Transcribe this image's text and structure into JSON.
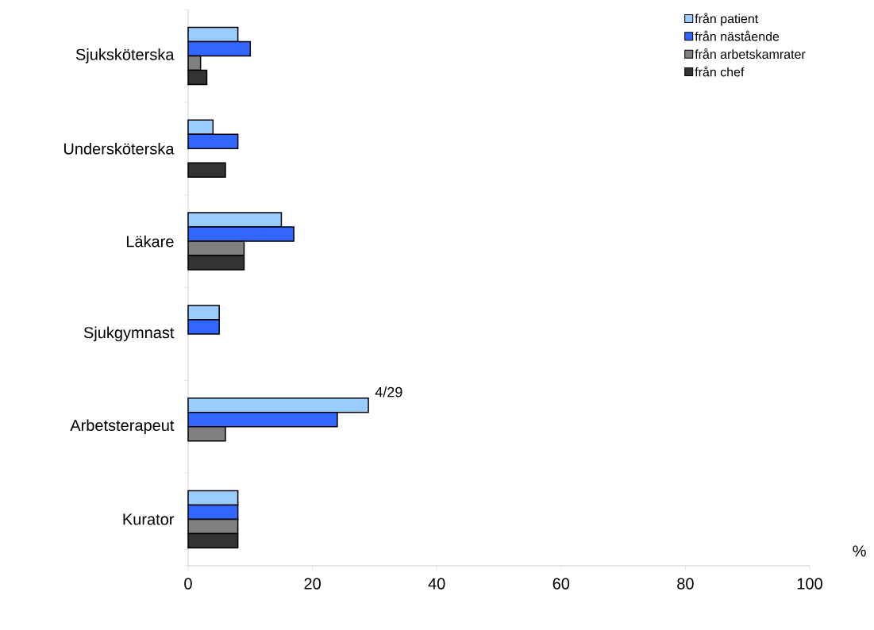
{
  "chart_data": {
    "type": "bar",
    "orientation": "horizontal",
    "categories": [
      "Sjuksköterska",
      "Undersköterska",
      "Läkare",
      "Sjukgymnast",
      "Arbetsterapeut",
      "Kurator"
    ],
    "series": [
      {
        "name": "från patient",
        "color": "#99ccff",
        "values": [
          8,
          4,
          15,
          5,
          29,
          8
        ]
      },
      {
        "name": "från nästående",
        "color": "#3366ff",
        "values": [
          10,
          8,
          17,
          5,
          24,
          8
        ]
      },
      {
        "name": "från arbetskamrater",
        "color": "#808080",
        "values": [
          2,
          null,
          9,
          null,
          6,
          8
        ]
      },
      {
        "name": "från chef",
        "color": "#333333",
        "values": [
          3,
          6,
          9,
          null,
          null,
          8
        ]
      }
    ],
    "xlabel": "%",
    "xlim": [
      0,
      100
    ],
    "xticks": [
      0,
      20,
      40,
      60,
      80,
      100
    ],
    "annotations": [
      "4/29"
    ],
    "grid": false,
    "legend": "top right"
  }
}
